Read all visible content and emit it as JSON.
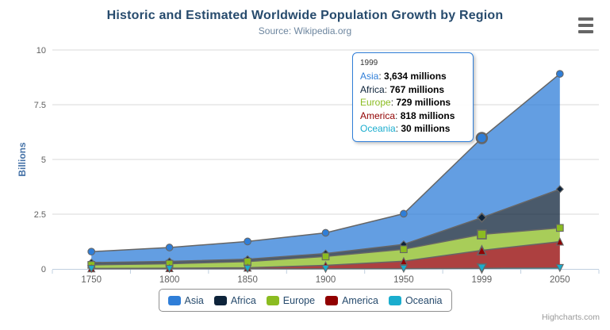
{
  "chart_data": {
    "type": "area",
    "stacking": "normal",
    "title": "Historic and Estimated Worldwide Population Growth by Region",
    "subtitle": "Source: Wikipedia.org",
    "categories": [
      "1750",
      "1800",
      "1850",
      "1900",
      "1950",
      "1999",
      "2050"
    ],
    "series": [
      {
        "name": "Asia",
        "color": "#2f7ed8",
        "marker": "circle",
        "values": [
          502,
          635,
          809,
          947,
          1402,
          3634,
          5268
        ]
      },
      {
        "name": "Africa",
        "color": "#0d233a",
        "marker": "diamond",
        "values": [
          106,
          107,
          111,
          133,
          221,
          767,
          1766
        ]
      },
      {
        "name": "Europe",
        "color": "#8bbc21",
        "marker": "square",
        "values": [
          163,
          203,
          276,
          408,
          547,
          729,
          628
        ]
      },
      {
        "name": "America",
        "color": "#910000",
        "marker": "triangle",
        "values": [
          18,
          31,
          54,
          156,
          339,
          818,
          1201
        ]
      },
      {
        "name": "Oceania",
        "color": "#1aadce",
        "marker": "triangle-down",
        "values": [
          2,
          2,
          2,
          6,
          13,
          30,
          46
        ]
      }
    ],
    "values_unit": "millions",
    "xlabel": "",
    "ylabel": "Billions",
    "yticks": [
      0,
      2.5,
      5,
      7.5,
      10
    ],
    "ylim": [
      0,
      10
    ],
    "grid": true,
    "legend_position": "bottom",
    "line_color": "#666666",
    "fill_opacity": 0.75,
    "grid_color": "#D8D8D8",
    "axis_line_color": "#C0D0E0",
    "axis_label_color": "#606060",
    "y_axis_title_color": "#4572A7",
    "hover_category_index": 5
  },
  "tooltip": {
    "header": "1999",
    "rows": [
      {
        "name": "Asia",
        "value": "3,634 millions",
        "color": "#2f7ed8"
      },
      {
        "name": "Africa",
        "value": "767 millions",
        "color": "#0d233a"
      },
      {
        "name": "Europe",
        "value": "729 millions",
        "color": "#8bbc21"
      },
      {
        "name": "America",
        "value": "818 millions",
        "color": "#910000"
      },
      {
        "name": "Oceania",
        "value": "30 millions",
        "color": "#1aadce"
      }
    ],
    "border_color": "#2f7ed8"
  },
  "legend": {
    "items": [
      {
        "label": "Asia",
        "color": "#2f7ed8"
      },
      {
        "label": "Africa",
        "color": "#0d233a"
      },
      {
        "label": "Europe",
        "color": "#8bbc21"
      },
      {
        "label": "America",
        "color": "#910000"
      },
      {
        "label": "Oceania",
        "color": "#1aadce"
      }
    ]
  },
  "credits": "Highcharts.com",
  "export_menu_icon": "hamburger-icon"
}
